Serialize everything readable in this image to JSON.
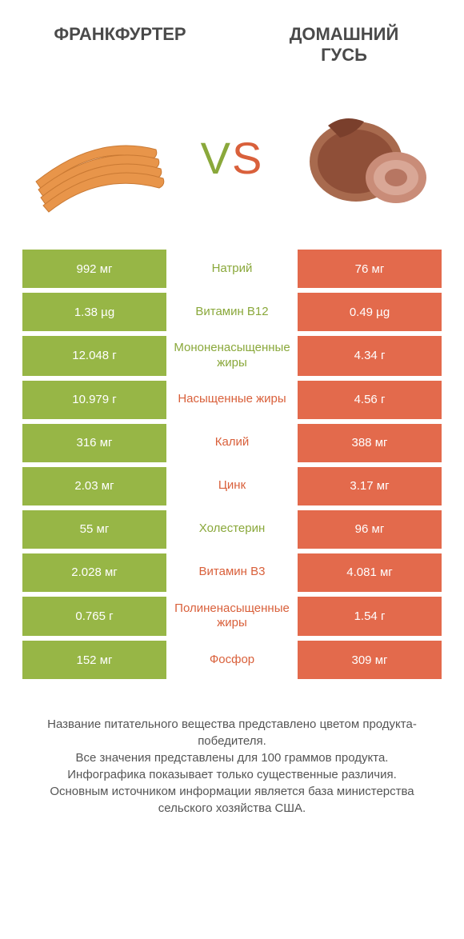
{
  "colors": {
    "green": "#97b646",
    "orange": "#e36a4c",
    "mid_green": "#8aa83b",
    "mid_orange": "#d9603b"
  },
  "header": {
    "left_title": "ФРАНКФУРТЕР",
    "right_title": "ДОМАШНИЙ ГУСЬ",
    "vs_v": "V",
    "vs_s": "S"
  },
  "rows": [
    {
      "left": "992 мг",
      "mid": "Натрий",
      "right": "76 мг",
      "winner": "left"
    },
    {
      "left": "1.38 µg",
      "mid": "Витамин B12",
      "right": "0.49 µg",
      "winner": "left"
    },
    {
      "left": "12.048 г",
      "mid": "Мононенасыщенные жиры",
      "right": "4.34 г",
      "winner": "left"
    },
    {
      "left": "10.979 г",
      "mid": "Насыщенные жиры",
      "right": "4.56 г",
      "winner": "right"
    },
    {
      "left": "316 мг",
      "mid": "Калий",
      "right": "388 мг",
      "winner": "right"
    },
    {
      "left": "2.03 мг",
      "mid": "Цинк",
      "right": "3.17 мг",
      "winner": "right"
    },
    {
      "left": "55 мг",
      "mid": "Холестерин",
      "right": "96 мг",
      "winner": "left"
    },
    {
      "left": "2.028 мг",
      "mid": "Витамин B3",
      "right": "4.081 мг",
      "winner": "right"
    },
    {
      "left": "0.765 г",
      "mid": "Полиненасыщенные жиры",
      "right": "1.54 г",
      "winner": "right"
    },
    {
      "left": "152 мг",
      "mid": "Фосфор",
      "right": "309 мг",
      "winner": "right"
    }
  ],
  "footer": {
    "line1": "Название питательного вещества представлено цветом продукта-победителя.",
    "line2": "Все значения представлены для 100 граммов продукта.",
    "line3": "Инфографика показывает только существенные различия.",
    "line4": "Основным источником информации является база министерства сельского хозяйства США."
  }
}
